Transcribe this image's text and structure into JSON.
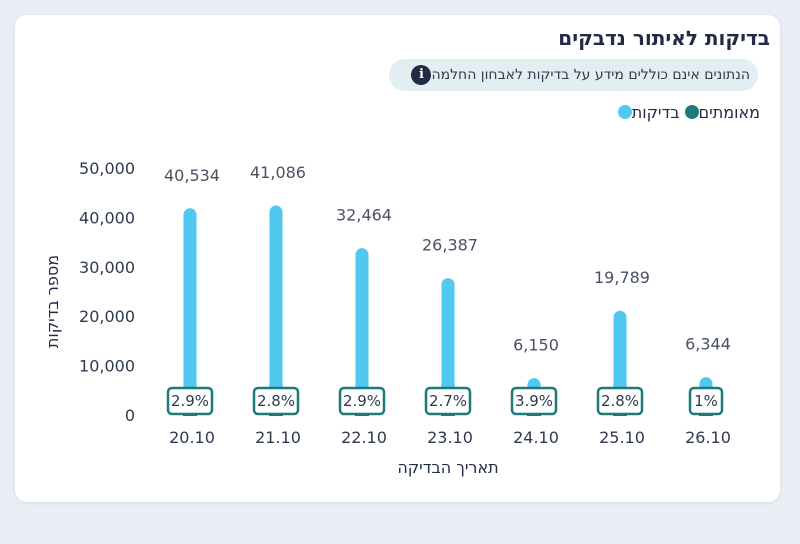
{
  "card": {
    "title": "בדיקות לאיתור נדבקים",
    "note": "הנתונים אינם כוללים מידע על בדיקות לאבחון החלמה",
    "info_icon": "info-icon",
    "legend": [
      {
        "label": "בדיקות",
        "color": "#50c8f0"
      },
      {
        "label": "מאומתים",
        "color": "#1c7a78"
      }
    ]
  },
  "chart_data": {
    "type": "bar",
    "categories": [
      "20.10",
      "21.10",
      "22.10",
      "23.10",
      "24.10",
      "25.10",
      "26.10"
    ],
    "series": [
      {
        "name": "בדיקות",
        "values": [
          40534,
          41086,
          32464,
          26387,
          6150,
          19789,
          6344
        ]
      }
    ],
    "value_labels": [
      "40,534",
      "41,086",
      "32,464",
      "26,387",
      "6,150",
      "19,789",
      "6,344"
    ],
    "positive_rate_labels": [
      "2.9%",
      "2.8%",
      "2.9%",
      "2.7%",
      "3.9%",
      "2.8%",
      "1%"
    ],
    "xlabel": "תאריך הבדיקה",
    "ylabel": "מספר בדיקות",
    "yticks": [
      "0",
      "10,000",
      "20,000",
      "30,000",
      "40,000",
      "50,000"
    ],
    "ylim": [
      0,
      50000
    ],
    "grid": false,
    "legend_position": "top-right",
    "colors": {
      "tests": "#50c8f0",
      "confirmed": "#1c7a78"
    }
  }
}
